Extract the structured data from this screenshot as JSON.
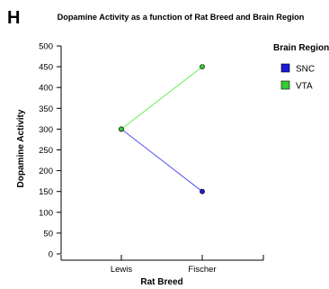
{
  "panel_letter": "H",
  "chart_data": {
    "type": "line",
    "title": "Dopamine Activity as a function of Rat Breed and Brain Region",
    "xlabel": "Rat Breed",
    "ylabel": "Dopamine Activity",
    "categories": [
      "Lewis",
      "Fischer"
    ],
    "ylim": [
      0,
      500
    ],
    "yticks": [
      0,
      50,
      100,
      150,
      200,
      250,
      300,
      350,
      400,
      450,
      500
    ],
    "grid": false,
    "legend": {
      "title": "Brain Region",
      "placement": "right"
    },
    "series": [
      {
        "name": "SNC",
        "values": [
          300,
          150
        ],
        "line_color": "#5555ee",
        "marker_color": "#1a1ad8"
      },
      {
        "name": "VTA",
        "values": [
          300,
          450
        ],
        "line_color": "#66ee55",
        "marker_color": "#33cc33"
      }
    ]
  }
}
